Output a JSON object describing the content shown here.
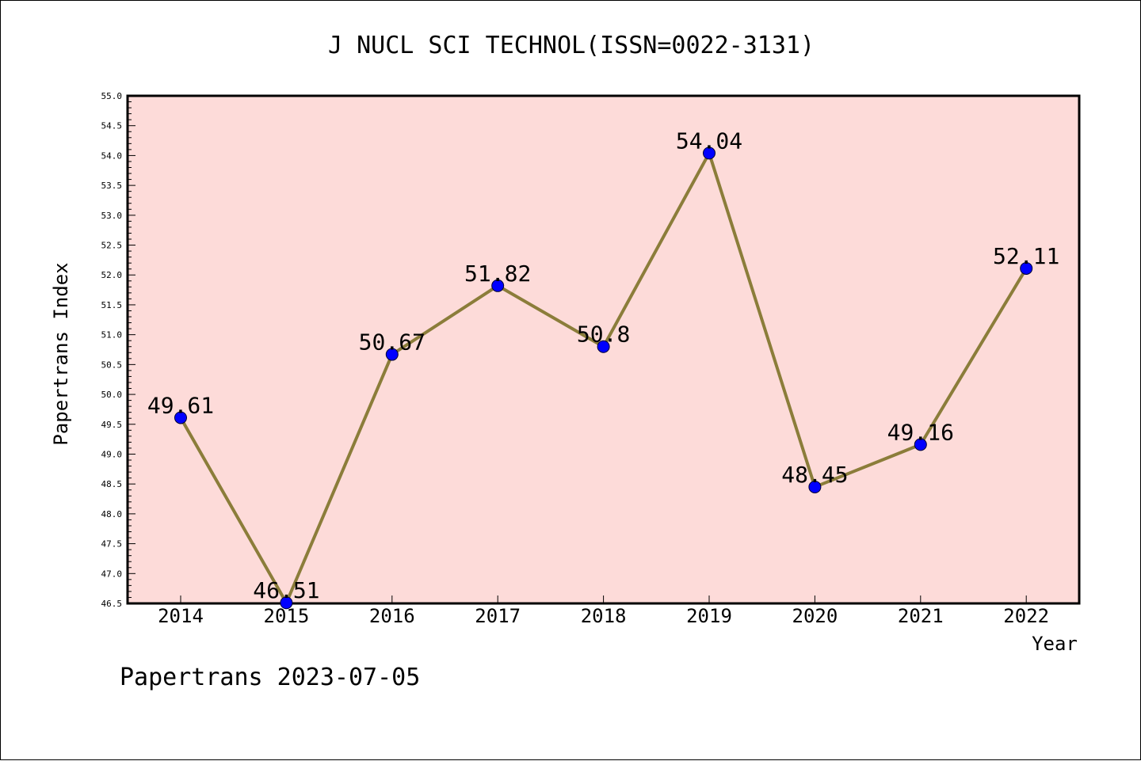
{
  "chart_data": {
    "type": "line",
    "title": "J NUCL SCI TECHNOL(ISSN=0022-3131)",
    "xlabel": "Year",
    "ylabel": "Papertrans Index",
    "categories": [
      "2014",
      "2015",
      "2016",
      "2017",
      "2018",
      "2019",
      "2020",
      "2021",
      "2022"
    ],
    "values": [
      49.61,
      46.51,
      50.67,
      51.82,
      50.8,
      54.04,
      48.45,
      49.16,
      52.11
    ],
    "point_labels": [
      "49.61",
      "46.51",
      "50.67",
      "51.82",
      "50.8",
      "54.04",
      "48.45",
      "49.16",
      "52.11"
    ],
    "ylim": [
      46.5,
      55.0
    ],
    "yticks": [
      "46.5",
      "47.0",
      "47.5",
      "48.0",
      "48.5",
      "49.0",
      "49.5",
      "50.0",
      "50.5",
      "51.0",
      "51.5",
      "52.0",
      "52.5",
      "53.0",
      "53.5",
      "54.0",
      "54.5",
      "55.0"
    ],
    "grid": false,
    "colors": {
      "plot_background": "#fddbd9",
      "line": "#8b7d3a",
      "marker": "#0000ff"
    }
  },
  "footer": "Papertrans 2023-07-05"
}
